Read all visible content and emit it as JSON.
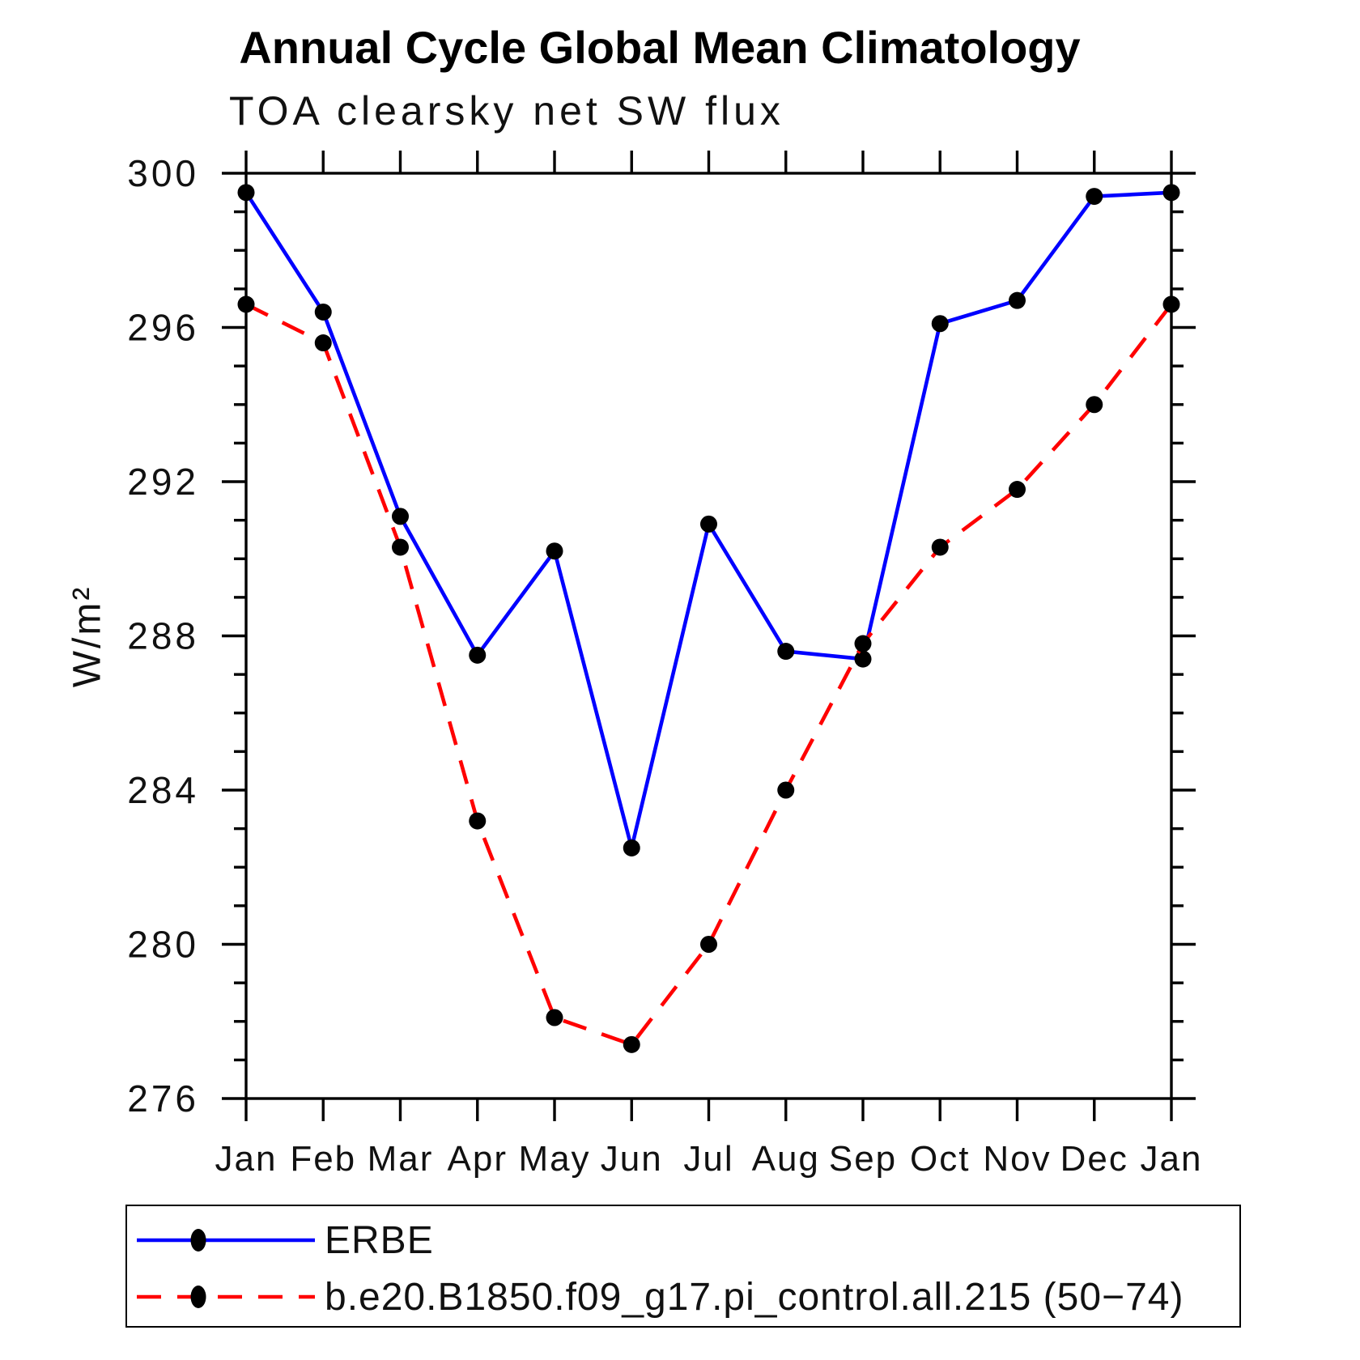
{
  "title": "Annual Cycle Global Mean Climatology",
  "subtitle": "TOA clearsky net SW flux",
  "chart_data": {
    "type": "line",
    "title": "Annual Cycle Global Mean Climatology",
    "subtitle": "TOA clearsky net SW flux",
    "xlabel": "",
    "ylabel": "W/m²",
    "categories": [
      "Jan",
      "Feb",
      "Mar",
      "Apr",
      "May",
      "Jun",
      "Jul",
      "Aug",
      "Sep",
      "Oct",
      "Nov",
      "Dec",
      "Jan"
    ],
    "ylim": [
      276,
      300
    ],
    "ytick_major": [
      276,
      280,
      284,
      288,
      292,
      296,
      300
    ],
    "ytick_minor_step": 1,
    "grid": false,
    "axis_color": "#000000",
    "marker_color": "#000000",
    "legend_position": "bottom-left",
    "series": [
      {
        "name": "ERBE",
        "line_color": "#0000ff",
        "line_style": "solid",
        "marker": "filled-circle",
        "values": [
          299.5,
          296.4,
          291.1,
          287.5,
          290.2,
          282.5,
          290.9,
          287.6,
          287.4,
          296.1,
          296.7,
          299.4,
          299.5
        ]
      },
      {
        "name": "b.e20.B1850.f09_g17.pi_control.all.215 (50−74)",
        "line_color": "#ff0000",
        "line_style": "dashed",
        "marker": "filled-circle",
        "values": [
          296.6,
          295.6,
          290.3,
          283.2,
          278.1,
          277.4,
          280.0,
          284.0,
          287.8,
          290.3,
          291.8,
          294.0,
          296.6
        ]
      }
    ]
  }
}
